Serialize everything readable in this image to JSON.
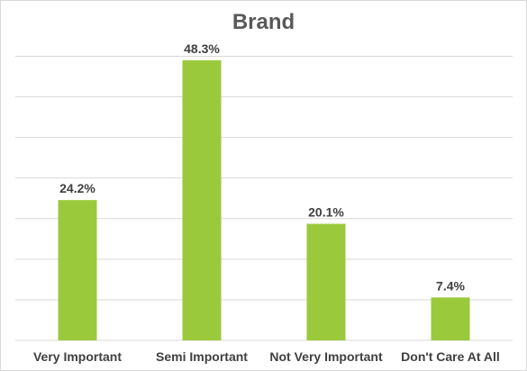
{
  "chart_data": {
    "type": "bar",
    "title": "Brand",
    "categories": [
      "Very Important",
      "Semi Important",
      "Not Very Important",
      "Don't Care At All"
    ],
    "values": [
      24.2,
      48.3,
      20.1,
      7.4
    ],
    "value_labels": [
      "24.2%",
      "48.3%",
      "20.1%",
      "7.4%"
    ],
    "unit": "%",
    "ylim": [
      0,
      50
    ],
    "grid": true,
    "legend": "none",
    "bar_color": "#9ACA3C",
    "grid_color": "#d9d9d9",
    "label_color": "#404040",
    "title_color": "#595959"
  }
}
